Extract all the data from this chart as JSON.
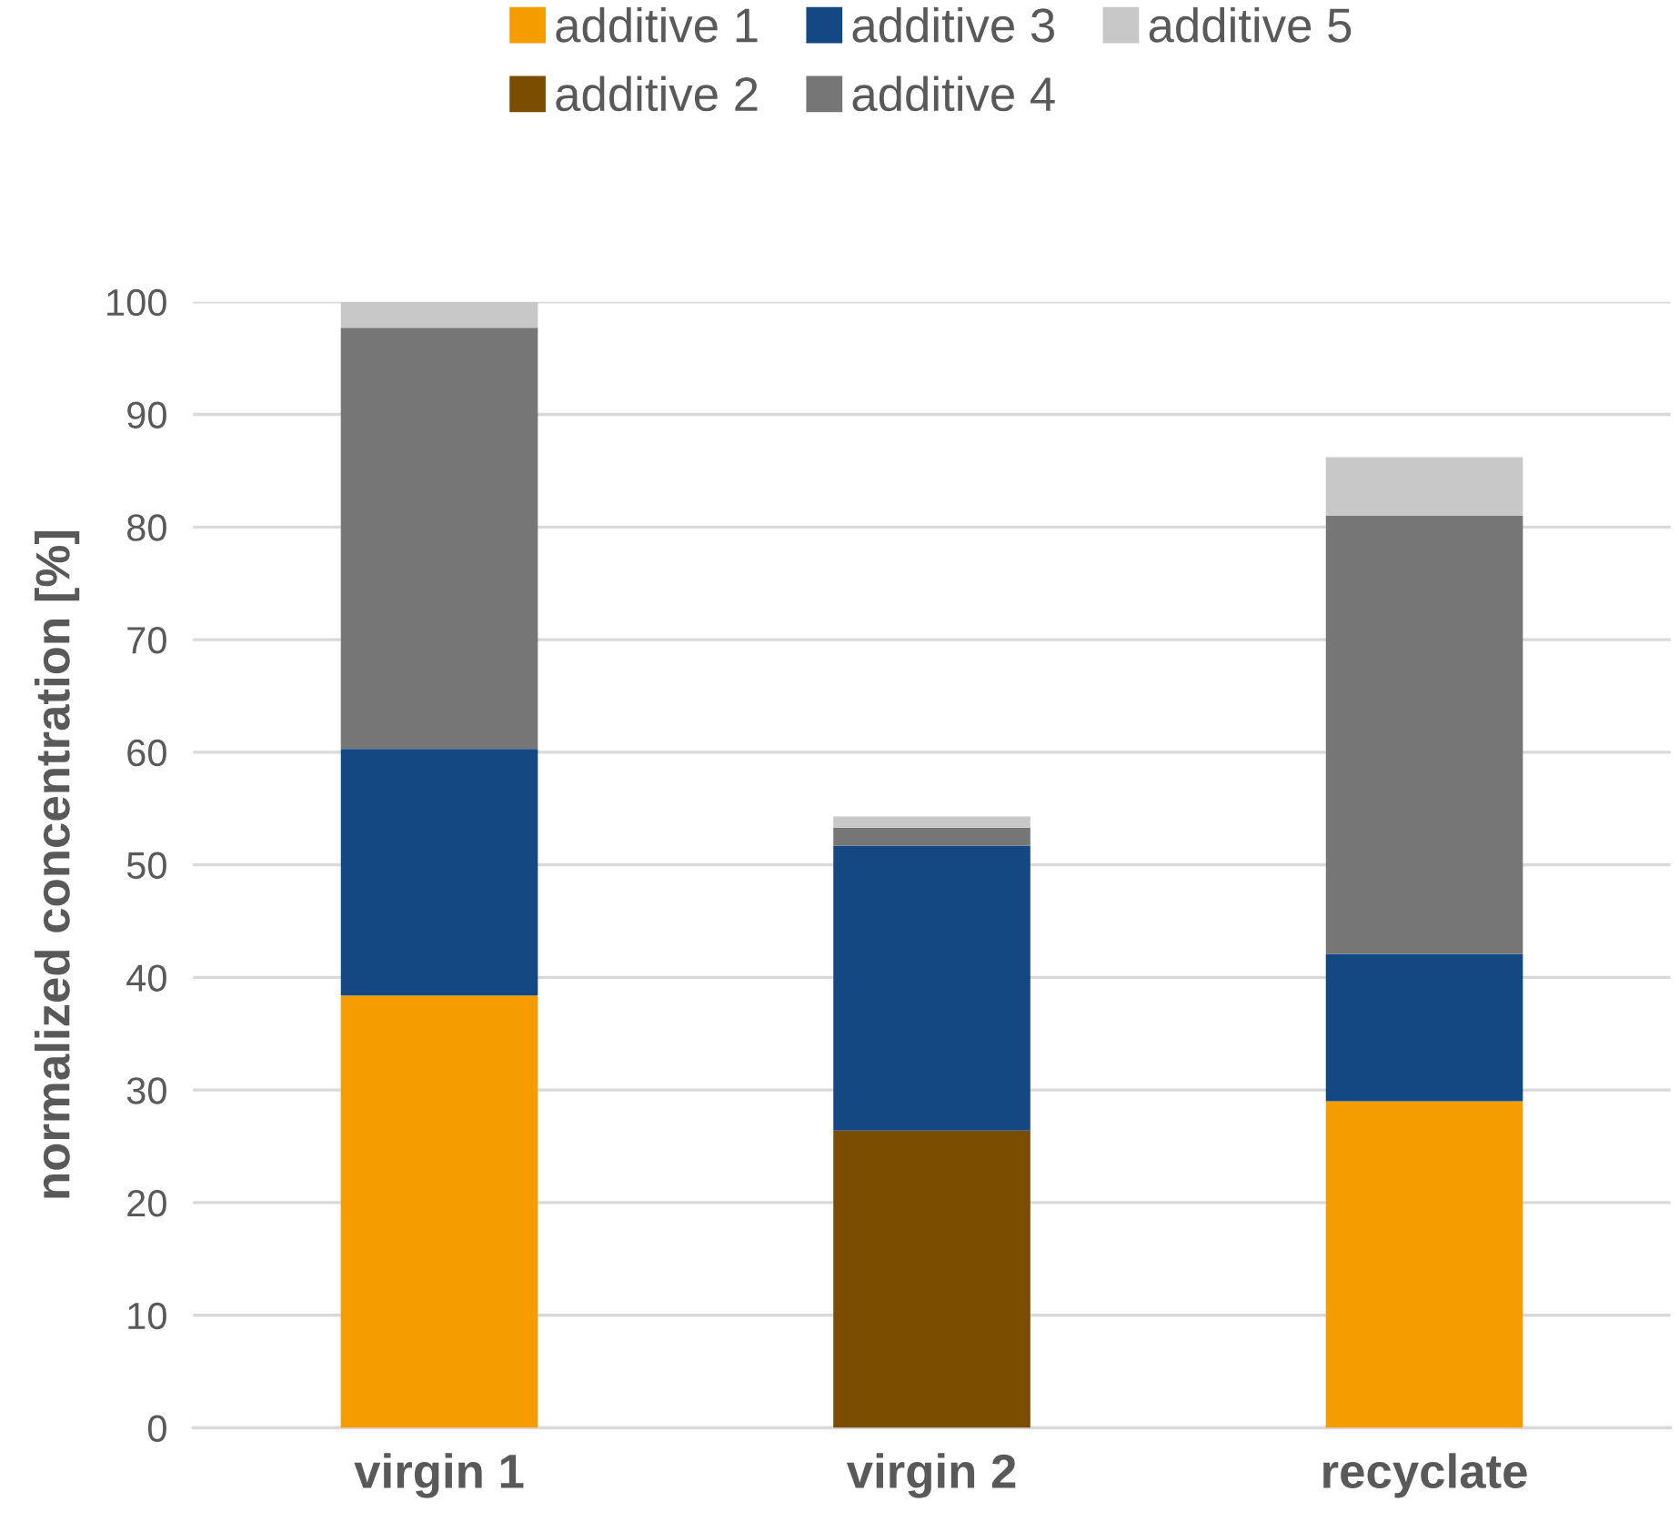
{
  "chart_data": {
    "type": "bar",
    "stacked": true,
    "ylabel": "normalized concentration [%]",
    "categories": [
      "virgin 1",
      "virgin 2",
      "recyclate"
    ],
    "series": [
      {
        "name": "additive 1",
        "color": "#f59c00",
        "values": [
          38.4,
          null,
          29.0
        ]
      },
      {
        "name": "additive 2",
        "color": "#7b4d00",
        "values": [
          null,
          26.4,
          null
        ]
      },
      {
        "name": "additive 3",
        "color": "#134883",
        "values": [
          21.9,
          25.3,
          13.1
        ]
      },
      {
        "name": "additive 4",
        "color": "#767676",
        "values": [
          37.4,
          1.6,
          38.9
        ]
      },
      {
        "name": "additive 5",
        "color": "#c8c8c8",
        "values": [
          2.3,
          1.0,
          5.2
        ]
      }
    ],
    "ylim": [
      0,
      100
    ],
    "yticks": [
      0,
      10,
      20,
      30,
      40,
      50,
      60,
      70,
      80,
      90,
      100
    ],
    "grid": "y",
    "legend": "top"
  }
}
